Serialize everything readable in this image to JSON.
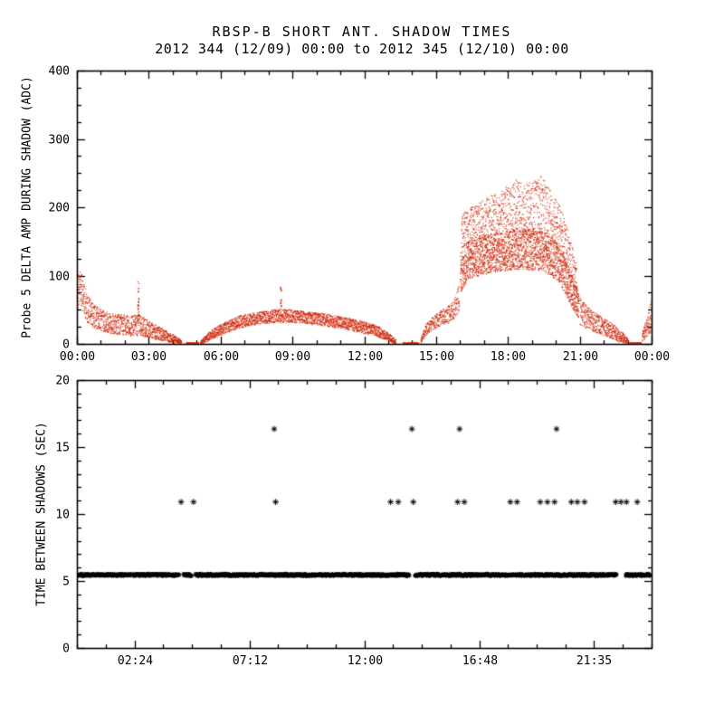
{
  "header": {
    "title": "RBSP-B SHORT ANT. SHADOW TIMES",
    "subtitle": "2012 344 (12/09) 00:00 to 2012 345 (12/10) 00:00"
  },
  "colors": {
    "background": "#ffffff",
    "axis": "#000000",
    "top_scatter": "#cc2200",
    "bottom_scatter": "#000000"
  },
  "chart_data": [
    {
      "type": "scatter",
      "name": "probe5-delta-amp",
      "ylabel": "Probe 5 DELTA AMP DURING SHADOW (ADC)",
      "x_unit": "hours-of-day",
      "xlim": [
        0,
        24
      ],
      "ylim": [
        0,
        400
      ],
      "grid": false,
      "marker": "dot",
      "color": "#cc2200",
      "xticks": [
        {
          "v": 0,
          "label": "00:00"
        },
        {
          "v": 3,
          "label": "03:00"
        },
        {
          "v": 6,
          "label": "06:00"
        },
        {
          "v": 9,
          "label": "09:00"
        },
        {
          "v": 12,
          "label": "12:00"
        },
        {
          "v": 15,
          "label": "15:00"
        },
        {
          "v": 18,
          "label": "18:00"
        },
        {
          "v": 21,
          "label": "21:00"
        },
        {
          "v": 24,
          "label": "00:00"
        }
      ],
      "yticks": [
        {
          "v": 0,
          "label": "0"
        },
        {
          "v": 100,
          "label": "100"
        },
        {
          "v": 200,
          "label": "200"
        },
        {
          "v": 300,
          "label": "300"
        },
        {
          "v": 400,
          "label": "400"
        }
      ],
      "x_minor_step": 1,
      "y_minor_step": 25,
      "envelope_segments": [
        {
          "density": 5,
          "nodes": [
            [
              0.02,
              55,
              100
            ],
            [
              0.12,
              60,
              112
            ],
            [
              0.25,
              45,
              92
            ],
            [
              0.45,
              30,
              70
            ],
            [
              0.7,
              24,
              58
            ],
            [
              1.0,
              20,
              52
            ],
            [
              1.4,
              16,
              46
            ],
            [
              1.8,
              14,
              44
            ],
            [
              2.2,
              12,
              42
            ],
            [
              2.6,
              12,
              44
            ],
            [
              3.0,
              9,
              34
            ],
            [
              3.4,
              6,
              26
            ],
            [
              3.8,
              3,
              18
            ],
            [
              4.1,
              1,
              12
            ],
            [
              4.35,
              0,
              6
            ]
          ]
        },
        {
          "density": 4,
          "nodes": [
            [
              4.55,
              0,
              2.5
            ],
            [
              5.05,
              0,
              2.5
            ]
          ]
        },
        {
          "density": 5,
          "nodes": [
            [
              5.15,
              0,
              5
            ],
            [
              5.5,
              5,
              18
            ],
            [
              5.9,
              12,
              28
            ],
            [
              6.3,
              18,
              35
            ],
            [
              6.8,
              24,
              42
            ],
            [
              7.3,
              28,
              46
            ],
            [
              7.8,
              30,
              49
            ],
            [
              8.3,
              32,
              51
            ],
            [
              8.8,
              32,
              51
            ],
            [
              9.3,
              31,
              49
            ],
            [
              9.8,
              29,
              47
            ],
            [
              10.3,
              27,
              45
            ],
            [
              10.8,
              24,
              42
            ],
            [
              11.3,
              21,
              39
            ],
            [
              11.8,
              17,
              35
            ],
            [
              12.3,
              13,
              30
            ],
            [
              12.7,
              9,
              24
            ],
            [
              13.05,
              4,
              15
            ],
            [
              13.3,
              0,
              7
            ]
          ]
        },
        {
          "density": 4,
          "nodes": [
            [
              13.6,
              0,
              2.5
            ],
            [
              14.25,
              0,
              2.5
            ]
          ]
        },
        {
          "density": 4,
          "nodes": [
            [
              14.35,
              1,
              8
            ],
            [
              14.55,
              12,
              30
            ],
            [
              14.8,
              20,
              40
            ],
            [
              15.1,
              26,
              48
            ],
            [
              15.45,
              30,
              55
            ],
            [
              15.75,
              38,
              68
            ],
            [
              15.95,
              50,
              90
            ]
          ]
        },
        {
          "density": 9,
          "nodes": [
            [
              16.0,
              75,
              140
            ],
            [
              16.3,
              95,
              150
            ],
            [
              16.7,
              100,
              155
            ],
            [
              17.1,
              103,
              158
            ],
            [
              17.5,
              106,
              162
            ],
            [
              18.0,
              108,
              166
            ],
            [
              18.5,
              110,
              170
            ],
            [
              19.0,
              108,
              168
            ],
            [
              19.4,
              108,
              166
            ],
            [
              19.8,
              100,
              158
            ],
            [
              20.1,
              90,
              148
            ],
            [
              20.4,
              72,
              125
            ],
            [
              20.7,
              50,
              98
            ],
            [
              20.95,
              38,
              75
            ]
          ]
        },
        {
          "density": 4,
          "nodes": [
            [
              16.05,
              140,
              190
            ],
            [
              16.4,
              150,
              200
            ],
            [
              16.8,
              152,
              208
            ],
            [
              17.2,
              157,
              216
            ],
            [
              17.6,
              160,
              224
            ],
            [
              18.0,
              163,
              232
            ],
            [
              18.35,
              164,
              242
            ],
            [
              18.7,
              160,
              234
            ],
            [
              19.05,
              162,
              240
            ],
            [
              19.35,
              165,
              248
            ],
            [
              19.7,
              155,
              228
            ],
            [
              20.0,
              147,
              214
            ],
            [
              20.3,
              125,
              192
            ],
            [
              20.6,
              95,
              155
            ],
            [
              20.85,
              70,
              115
            ]
          ]
        },
        {
          "density": 5,
          "nodes": [
            [
              21.0,
              28,
              68
            ],
            [
              21.3,
              22,
              56
            ],
            [
              21.6,
              17,
              48
            ],
            [
              21.9,
              14,
              40
            ],
            [
              22.2,
              10,
              34
            ],
            [
              22.5,
              6,
              26
            ],
            [
              22.8,
              2,
              16
            ],
            [
              23.0,
              0,
              8
            ]
          ]
        },
        {
          "density": 4,
          "nodes": [
            [
              23.05,
              0,
              2.5
            ],
            [
              23.55,
              0,
              2.5
            ]
          ]
        },
        {
          "density": 5,
          "nodes": [
            [
              23.6,
              4,
              18
            ],
            [
              23.78,
              10,
              38
            ],
            [
              23.9,
              15,
              55
            ],
            [
              24.0,
              20,
              72
            ]
          ]
        }
      ],
      "spikes": [
        {
          "t": 2.55,
          "y0": 44,
          "y1": 92,
          "n": 26
        },
        {
          "t": 8.5,
          "y0": 50,
          "y1": 86,
          "n": 22
        }
      ]
    },
    {
      "type": "scatter",
      "name": "time-between-shadows",
      "ylabel": "TIME BETWEEN SHADOWS (SEC)",
      "x_unit": "hours-of-day",
      "xlim": [
        0,
        24
      ],
      "ylim": [
        0,
        20
      ],
      "grid": false,
      "marker": "asterisk",
      "color": "#000000",
      "xticks": [
        {
          "v": 2.4,
          "label": "02:24"
        },
        {
          "v": 7.2,
          "label": "07:12"
        },
        {
          "v": 12.0,
          "label": "12:00"
        },
        {
          "v": 16.8,
          "label": "16:48"
        },
        {
          "v": 21.583,
          "label": "21:35"
        }
      ],
      "yticks": [
        {
          "v": 0,
          "label": "0"
        },
        {
          "v": 5,
          "label": "5"
        },
        {
          "v": 10,
          "label": "10"
        },
        {
          "v": 15,
          "label": "15"
        },
        {
          "v": 20,
          "label": "20"
        }
      ],
      "x_minor_step": 1.2,
      "y_minor_step": 1,
      "band": {
        "y": 5.45,
        "jitter": 0.08,
        "segments": [
          [
            0.05,
            2.28
          ],
          [
            2.36,
            4.28
          ],
          [
            4.45,
            4.8
          ],
          [
            4.95,
            13.88
          ],
          [
            14.12,
            18.62
          ],
          [
            18.68,
            22.55
          ],
          [
            22.92,
            23.95
          ]
        ]
      },
      "upper_points": [
        {
          "y": 10.9,
          "t": [
            4.35,
            4.87,
            8.3,
            13.1,
            13.42,
            14.05,
            15.9,
            16.18,
            18.1,
            18.38,
            19.35,
            19.65,
            19.95,
            20.65,
            20.9,
            21.2,
            22.5,
            22.72,
            22.95,
            23.4
          ]
        },
        {
          "y": 16.35,
          "t": [
            8.24,
            13.99,
            15.98,
            20.03
          ]
        }
      ]
    }
  ]
}
